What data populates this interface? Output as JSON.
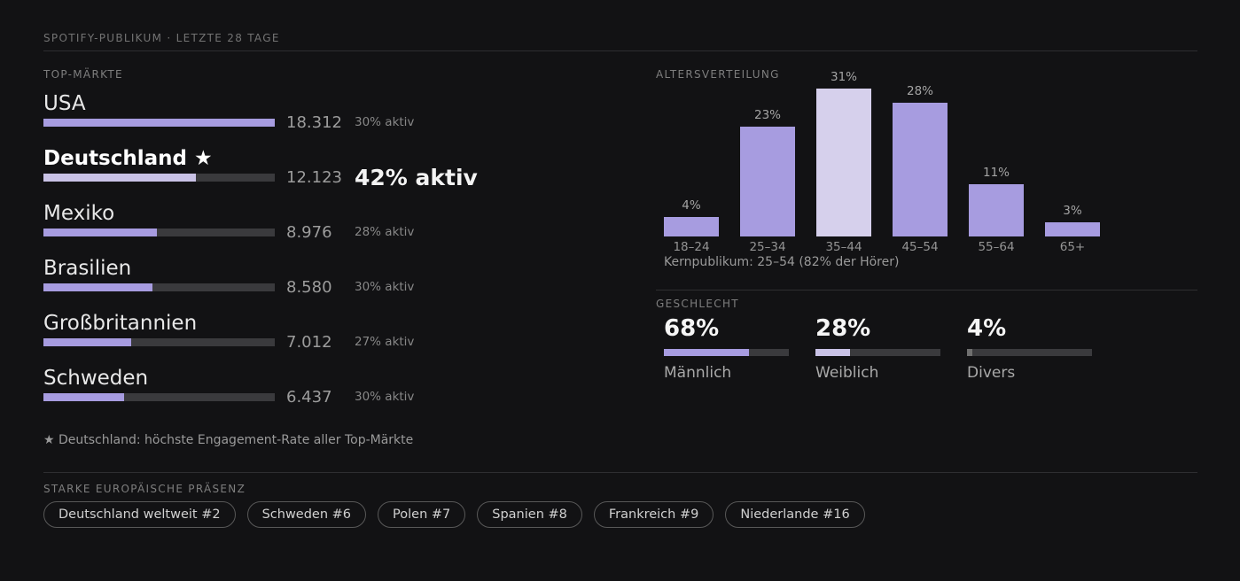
{
  "colors": {
    "background": "#121214",
    "accent": "#a79ce0",
    "accent_light": "#c9c2e6",
    "highlight_bar": "#d6d0ec",
    "gray_fill": "#6f6f6f",
    "track": "#3a3a3d",
    "divider": "#2e2e31"
  },
  "header": {
    "title": "SPOTIFY-PUBLIKUM · LETZTE 28 TAGE"
  },
  "top_markets": {
    "section_label": "TOP-MÄRKTE",
    "footnote": "★ Deutschland: höchste Engagement-Rate aller Top-Märkte",
    "rows": [
      {
        "name": "USA",
        "value": "18.312",
        "aktiv": "30% aktiv",
        "pct": 100,
        "highlight": false
      },
      {
        "name": "Deutschland ★",
        "value": "12.123",
        "aktiv": "42% aktiv",
        "pct": 66,
        "highlight": true
      },
      {
        "name": "Mexiko",
        "value": "8.976",
        "aktiv": "28% aktiv",
        "pct": 49,
        "highlight": false
      },
      {
        "name": "Brasilien",
        "value": "8.580",
        "aktiv": "30% aktiv",
        "pct": 47,
        "highlight": false
      },
      {
        "name": "Großbritannien",
        "value": "7.012",
        "aktiv": "27% aktiv",
        "pct": 38,
        "highlight": false
      },
      {
        "name": "Schweden",
        "value": "6.437",
        "aktiv": "30% aktiv",
        "pct": 35,
        "highlight": false
      }
    ]
  },
  "age": {
    "section_label": "ALTERSVERTEILUNG",
    "caption": "Kernpublikum: 25–54 (82% der Hörer)",
    "categories": [
      "18–24",
      "25–34",
      "35–44",
      "45–54",
      "55–64",
      "65+"
    ],
    "values": [
      4,
      23,
      31,
      28,
      11,
      3
    ],
    "value_labels": [
      "4%",
      "23%",
      "31%",
      "28%",
      "11%",
      "3%"
    ],
    "highlight_index": 2
  },
  "gender": {
    "section_label": "GESCHLECHT",
    "items": [
      {
        "label": "Männlich",
        "pct_label": "68%",
        "pct": 68,
        "fill": "accent"
      },
      {
        "label": "Weiblich",
        "pct_label": "28%",
        "pct": 28,
        "fill": "accent_light"
      },
      {
        "label": "Divers",
        "pct_label": "4%",
        "pct": 4,
        "fill": "gray"
      }
    ]
  },
  "european": {
    "section_label": "STARKE EUROPÄISCHE PRÄSENZ",
    "pills": [
      "Deutschland weltweit #2",
      "Schweden #6",
      "Polen #7",
      "Spanien #8",
      "Frankreich #9",
      "Niederlande #16"
    ]
  },
  "chart_data": [
    {
      "type": "bar",
      "orientation": "horizontal",
      "title": "TOP-MÄRKTE",
      "categories": [
        "USA",
        "Deutschland",
        "Mexiko",
        "Brasilien",
        "Großbritannien",
        "Schweden"
      ],
      "values": [
        18312,
        12123,
        8976,
        8580,
        7012,
        6437
      ],
      "value_labels": [
        "18.312",
        "12.123",
        "8.976",
        "8.580",
        "7.012",
        "6.437"
      ],
      "annotations": [
        "30% aktiv",
        "42% aktiv",
        "28% aktiv",
        "30% aktiv",
        "27% aktiv",
        "30% aktiv"
      ],
      "highlighted_category": "Deutschland",
      "footnote": "★ Deutschland: höchste Engagement-Rate aller Top-Märkte",
      "xlim": [
        0,
        18312
      ],
      "grid": false,
      "legend": false
    },
    {
      "type": "bar",
      "orientation": "vertical",
      "title": "ALTERSVERTEILUNG",
      "categories": [
        "18–24",
        "25–34",
        "35–44",
        "45–54",
        "55–64",
        "65+"
      ],
      "values": [
        4,
        23,
        31,
        28,
        11,
        3
      ],
      "unit": "%",
      "highlighted_category": "35–44",
      "annotation": "Kernpublikum: 25–54 (82% der Hörer)",
      "ylim": [
        0,
        31
      ],
      "grid": false,
      "legend": false
    },
    {
      "type": "bar",
      "orientation": "horizontal",
      "title": "GESCHLECHT",
      "categories": [
        "Männlich",
        "Weiblich",
        "Divers"
      ],
      "values": [
        68,
        28,
        4
      ],
      "unit": "%",
      "xlim": [
        0,
        100
      ],
      "grid": false,
      "legend": false
    }
  ]
}
